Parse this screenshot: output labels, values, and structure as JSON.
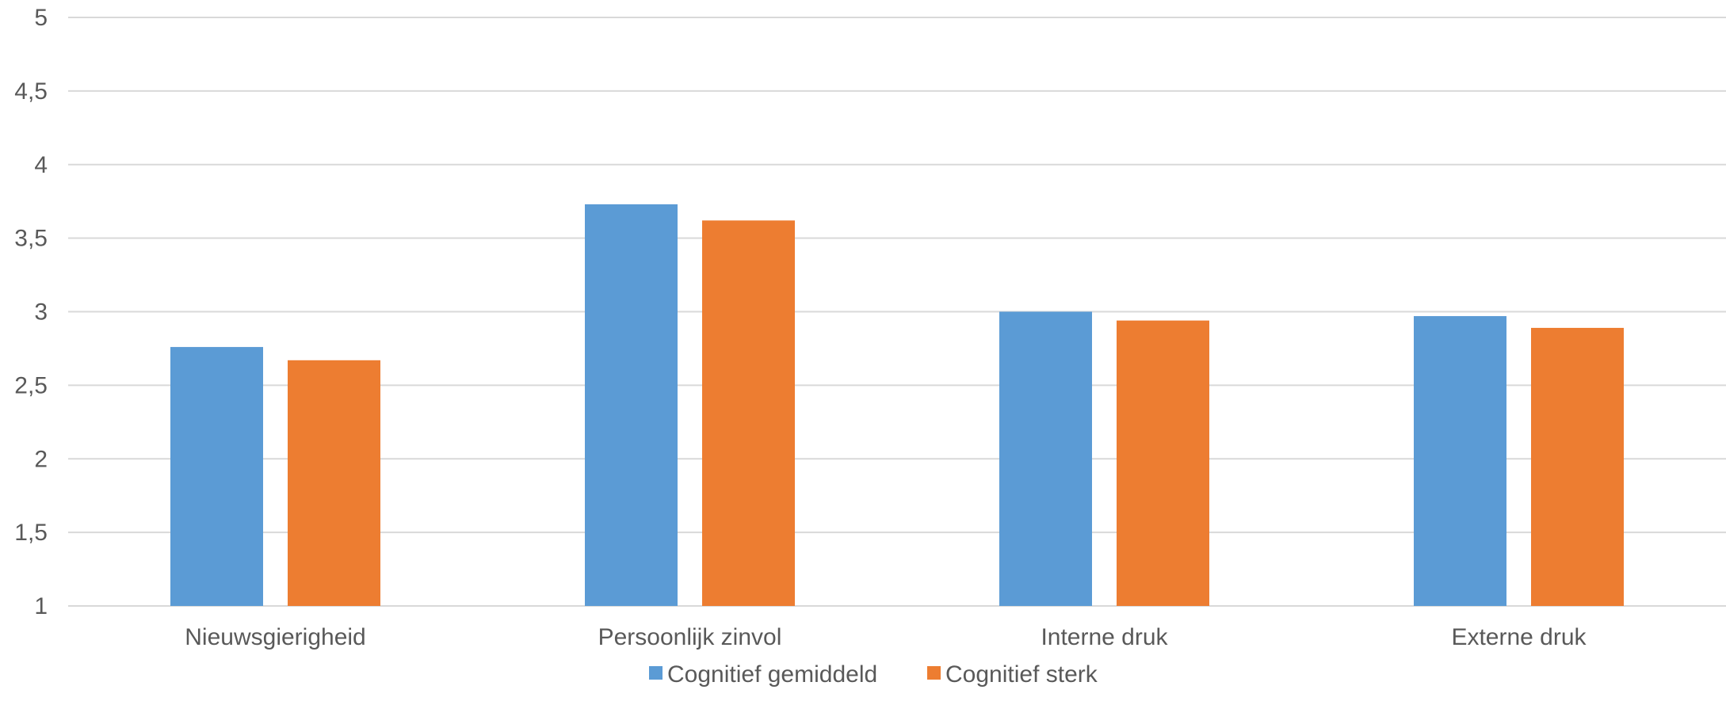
{
  "chart_data": {
    "type": "bar",
    "title": "",
    "xlabel": "",
    "ylabel": "",
    "categories": [
      "Nieuwsgierigheid",
      "Persoonlijk zinvol",
      "Interne druk",
      "Externe druk"
    ],
    "series": [
      {
        "name": "Cognitief gemiddeld",
        "color": "#5b9bd5",
        "values": [
          2.76,
          3.73,
          3.0,
          2.97
        ]
      },
      {
        "name": "Cognitief sterk",
        "color": "#ed7d31",
        "values": [
          2.67,
          3.62,
          2.94,
          2.89
        ]
      }
    ],
    "ylim": [
      1,
      5
    ],
    "yticks": [
      1,
      1.5,
      2,
      2.5,
      3,
      3.5,
      4,
      4.5,
      5
    ],
    "ytick_labels": [
      "1",
      "1,5",
      "2",
      "2,5",
      "3",
      "3,5",
      "4",
      "4,5",
      "5"
    ],
    "grid": true,
    "legend_position": "bottom"
  }
}
